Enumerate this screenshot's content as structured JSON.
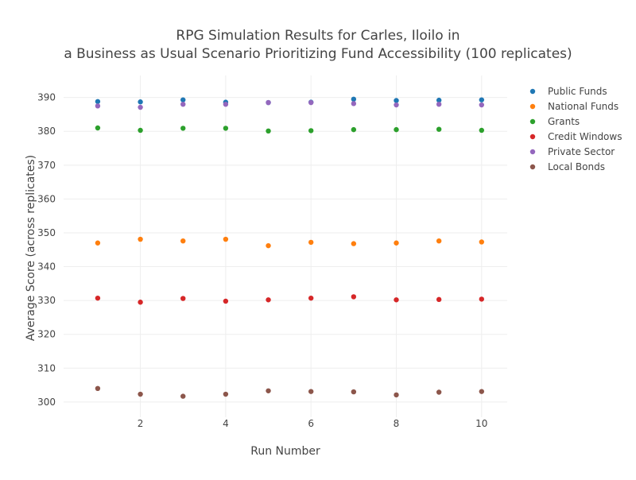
{
  "chart_data": {
    "type": "scatter",
    "title_lines": [
      "RPG Simulation Results for Carles, Iloilo in",
      "a Business as Usual Scenario Prioritizing Fund Accessibility (100 replicates)"
    ],
    "xlabel": "Run Number",
    "ylabel": "Average Score (across replicates)",
    "x": [
      1,
      2,
      3,
      4,
      5,
      6,
      7,
      8,
      9,
      10
    ],
    "xlim": [
      0.2,
      10.6
    ],
    "ylim": [
      295.5,
      396.5
    ],
    "xticks": [
      2,
      4,
      6,
      8,
      10
    ],
    "yticks": [
      300,
      310,
      320,
      330,
      340,
      350,
      360,
      370,
      380,
      390
    ],
    "grid": true,
    "legend_position": "top-right",
    "series": [
      {
        "name": "Public Funds",
        "color": "#1f77b4",
        "values": [
          388.8,
          388.7,
          389.3,
          388.6,
          388.5,
          388.6,
          389.5,
          389.1,
          389.2,
          389.3
        ]
      },
      {
        "name": "National Funds",
        "color": "#ff7f0e",
        "values": [
          347.0,
          348.1,
          347.6,
          348.1,
          346.2,
          347.2,
          346.8,
          347.0,
          347.6,
          347.3
        ]
      },
      {
        "name": "Grants",
        "color": "#2ca02c",
        "values": [
          381.0,
          380.3,
          380.9,
          380.9,
          380.1,
          380.2,
          380.5,
          380.5,
          380.6,
          380.3
        ]
      },
      {
        "name": "Credit Windows",
        "color": "#d62728",
        "values": [
          330.7,
          329.5,
          330.6,
          329.8,
          330.2,
          330.7,
          331.1,
          330.2,
          330.3,
          330.4
        ]
      },
      {
        "name": "Private Sector",
        "color": "#9467bd",
        "values": [
          387.5,
          387.1,
          388.0,
          388.0,
          388.5,
          388.5,
          388.2,
          387.8,
          388.0,
          387.8
        ]
      },
      {
        "name": "Local Bonds",
        "color": "#8c564b",
        "values": [
          304.0,
          302.3,
          301.7,
          302.3,
          303.3,
          303.1,
          303.0,
          302.1,
          302.9,
          303.1
        ]
      }
    ]
  }
}
